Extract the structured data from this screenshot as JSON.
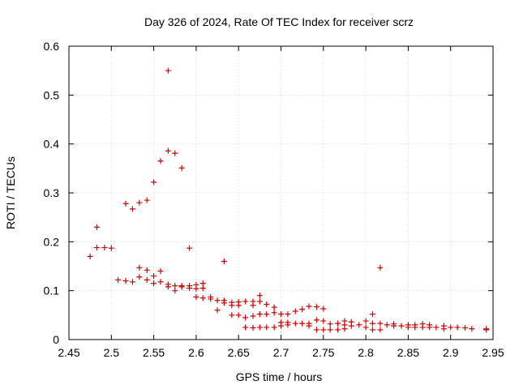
{
  "chart_data": {
    "type": "scatter",
    "title": "Day 326 of 2024, Rate Of TEC Index for receiver scrz",
    "xlabel": "GPS time / hours",
    "ylabel": "ROTI / TECUs",
    "xlim": [
      2.45,
      2.95
    ],
    "ylim": [
      0,
      0.6
    ],
    "x_ticks": [
      "2.45",
      "2.5",
      "2.55",
      "2.6",
      "2.65",
      "2.7",
      "2.75",
      "2.8",
      "2.85",
      "2.9",
      "2.95"
    ],
    "y_ticks": [
      "0",
      "0.1",
      "0.2",
      "0.3",
      "0.4",
      "0.5",
      "0.6"
    ],
    "grid": true,
    "marker": "+",
    "color": "#cc0000",
    "points": [
      [
        2.475,
        0.17
      ],
      [
        2.483,
        0.23
      ],
      [
        2.483,
        0.188
      ],
      [
        2.492,
        0.188
      ],
      [
        2.5,
        0.187
      ],
      [
        2.508,
        0.122
      ],
      [
        2.517,
        0.278
      ],
      [
        2.517,
        0.12
      ],
      [
        2.525,
        0.267
      ],
      [
        2.525,
        0.118
      ],
      [
        2.533,
        0.28
      ],
      [
        2.533,
        0.147
      ],
      [
        2.533,
        0.128
      ],
      [
        2.542,
        0.285
      ],
      [
        2.542,
        0.142
      ],
      [
        2.542,
        0.122
      ],
      [
        2.55,
        0.322
      ],
      [
        2.55,
        0.13
      ],
      [
        2.55,
        0.115
      ],
      [
        2.558,
        0.365
      ],
      [
        2.558,
        0.14
      ],
      [
        2.558,
        0.118
      ],
      [
        2.567,
        0.55
      ],
      [
        2.567,
        0.386
      ],
      [
        2.567,
        0.113
      ],
      [
        2.567,
        0.108
      ],
      [
        2.575,
        0.381
      ],
      [
        2.575,
        0.11
      ],
      [
        2.575,
        0.1
      ],
      [
        2.583,
        0.351
      ],
      [
        2.583,
        0.11
      ],
      [
        2.583,
        0.108
      ],
      [
        2.592,
        0.187
      ],
      [
        2.592,
        0.11
      ],
      [
        2.592,
        0.105
      ],
      [
        2.6,
        0.112
      ],
      [
        2.6,
        0.104
      ],
      [
        2.6,
        0.087
      ],
      [
        2.608,
        0.115
      ],
      [
        2.608,
        0.105
      ],
      [
        2.608,
        0.085
      ],
      [
        2.617,
        0.087
      ],
      [
        2.617,
        0.083
      ],
      [
        2.625,
        0.08
      ],
      [
        2.625,
        0.06
      ],
      [
        2.633,
        0.16
      ],
      [
        2.633,
        0.08
      ],
      [
        2.633,
        0.075
      ],
      [
        2.642,
        0.076
      ],
      [
        2.642,
        0.07
      ],
      [
        2.642,
        0.05
      ],
      [
        2.65,
        0.077
      ],
      [
        2.65,
        0.07
      ],
      [
        2.65,
        0.05
      ],
      [
        2.658,
        0.078
      ],
      [
        2.658,
        0.045
      ],
      [
        2.658,
        0.025
      ],
      [
        2.667,
        0.078
      ],
      [
        2.667,
        0.07
      ],
      [
        2.667,
        0.048
      ],
      [
        2.667,
        0.024
      ],
      [
        2.675,
        0.09
      ],
      [
        2.675,
        0.078
      ],
      [
        2.675,
        0.052
      ],
      [
        2.675,
        0.025
      ],
      [
        2.683,
        0.072
      ],
      [
        2.683,
        0.052
      ],
      [
        2.683,
        0.025
      ],
      [
        2.692,
        0.066
      ],
      [
        2.692,
        0.055
      ],
      [
        2.692,
        0.025
      ],
      [
        2.7,
        0.052
      ],
      [
        2.7,
        0.035
      ],
      [
        2.7,
        0.028
      ],
      [
        2.708,
        0.052
      ],
      [
        2.708,
        0.035
      ],
      [
        2.708,
        0.03
      ],
      [
        2.717,
        0.058
      ],
      [
        2.717,
        0.033
      ],
      [
        2.725,
        0.062
      ],
      [
        2.725,
        0.033
      ],
      [
        2.733,
        0.068
      ],
      [
        2.733,
        0.033
      ],
      [
        2.733,
        0.028
      ],
      [
        2.742,
        0.067
      ],
      [
        2.742,
        0.04
      ],
      [
        2.742,
        0.02
      ],
      [
        2.75,
        0.063
      ],
      [
        2.75,
        0.038
      ],
      [
        2.75,
        0.02
      ],
      [
        2.758,
        0.032
      ],
      [
        2.758,
        0.02
      ],
      [
        2.767,
        0.033
      ],
      [
        2.767,
        0.02
      ],
      [
        2.775,
        0.038
      ],
      [
        2.775,
        0.03
      ],
      [
        2.775,
        0.022
      ],
      [
        2.783,
        0.036
      ],
      [
        2.783,
        0.028
      ],
      [
        2.792,
        0.03
      ],
      [
        2.8,
        0.038
      ],
      [
        2.8,
        0.025
      ],
      [
        2.808,
        0.052
      ],
      [
        2.808,
        0.033
      ],
      [
        2.808,
        0.02
      ],
      [
        2.817,
        0.147
      ],
      [
        2.817,
        0.033
      ],
      [
        2.817,
        0.02
      ],
      [
        2.825,
        0.03
      ],
      [
        2.833,
        0.032
      ],
      [
        2.833,
        0.028
      ],
      [
        2.842,
        0.028
      ],
      [
        2.85,
        0.03
      ],
      [
        2.85,
        0.025
      ],
      [
        2.858,
        0.03
      ],
      [
        2.858,
        0.025
      ],
      [
        2.867,
        0.032
      ],
      [
        2.867,
        0.025
      ],
      [
        2.875,
        0.03
      ],
      [
        2.875,
        0.025
      ],
      [
        2.883,
        0.025
      ],
      [
        2.892,
        0.028
      ],
      [
        2.892,
        0.022
      ],
      [
        2.9,
        0.025
      ],
      [
        2.908,
        0.025
      ],
      [
        2.917,
        0.024
      ],
      [
        2.925,
        0.022
      ],
      [
        2.942,
        0.022
      ],
      [
        2.942,
        0.02
      ]
    ]
  }
}
